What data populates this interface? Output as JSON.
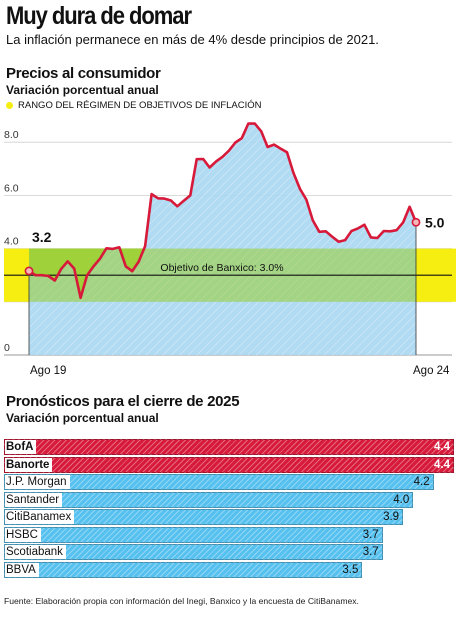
{
  "header": {
    "title": "Muy dura de domar",
    "subtitle": "La inflación permanece en más de 4% desde principios de 2021."
  },
  "colors": {
    "line": "#d7193a",
    "area": "#a9d6f2",
    "band": "#f5ee10",
    "band_inner": "#9ed13a",
    "bar_highlight": "#d7193a",
    "bar_normal": "#56c0ef"
  },
  "chart_data": [
    {
      "type": "line",
      "title": "Precios al consumidor",
      "subtitle": "Variación porcentual anual",
      "legend": "RANGO DEL RÉGIMEN DE OBJETIVOS DE INFLACIÓN",
      "target_label": "Objetivo de Banxico: 3.0%",
      "target": 3.0,
      "band": [
        2.0,
        4.0
      ],
      "ylim": [
        0,
        9
      ],
      "yticks": [
        "0",
        "2.0",
        "4.0",
        "6.0",
        "8.0"
      ],
      "ytick_values": [
        0,
        2,
        4,
        6,
        8
      ],
      "x_start_label": "Ago 19",
      "x_end_label": "Ago 24",
      "start_value_label": "3.2",
      "end_value_label": "5.0",
      "values": [
        3.16,
        3.0,
        3.0,
        2.97,
        2.8,
        3.24,
        3.52,
        3.25,
        2.15,
        2.99,
        3.33,
        3.62,
        4.01,
        3.99,
        4.05,
        3.33,
        3.15,
        3.51,
        4.09,
        6.05,
        5.89,
        5.88,
        5.81,
        5.59,
        5.8,
        6.0,
        7.36,
        7.37,
        7.05,
        7.28,
        7.45,
        7.68,
        7.99,
        8.15,
        8.7,
        8.7,
        8.41,
        7.82,
        7.91,
        7.76,
        7.62,
        6.85,
        6.25,
        5.84,
        5.06,
        4.63,
        4.65,
        4.45,
        4.26,
        4.32,
        4.66,
        4.76,
        4.9,
        4.42,
        4.4,
        4.66,
        4.65,
        4.69,
        4.98,
        5.57,
        4.99
      ]
    },
    {
      "type": "bar",
      "title": "Pronósticos para el cierre de 2025",
      "subtitle": "Variación porcentual anual",
      "categories": [
        "BofA",
        "Banorte",
        "J.P. Morgan",
        "Santander",
        "CitiBanamex",
        "HSBC",
        "Scotiabank",
        "BBVA"
      ],
      "values": [
        4.4,
        4.4,
        4.2,
        4.0,
        3.9,
        3.7,
        3.7,
        3.5
      ],
      "value_labels": [
        "4.4",
        "4.4",
        "4.2",
        "4.0",
        "3.9",
        "3.7",
        "3.7",
        "3.5"
      ],
      "highlight": [
        true,
        true,
        false,
        false,
        false,
        false,
        false,
        false
      ],
      "xlim": [
        0,
        4.4
      ]
    }
  ],
  "footer": {
    "source": "Fuente: Elaboración propia con información del Inegi, Banxico y la encuesta de CitiBanamex."
  }
}
